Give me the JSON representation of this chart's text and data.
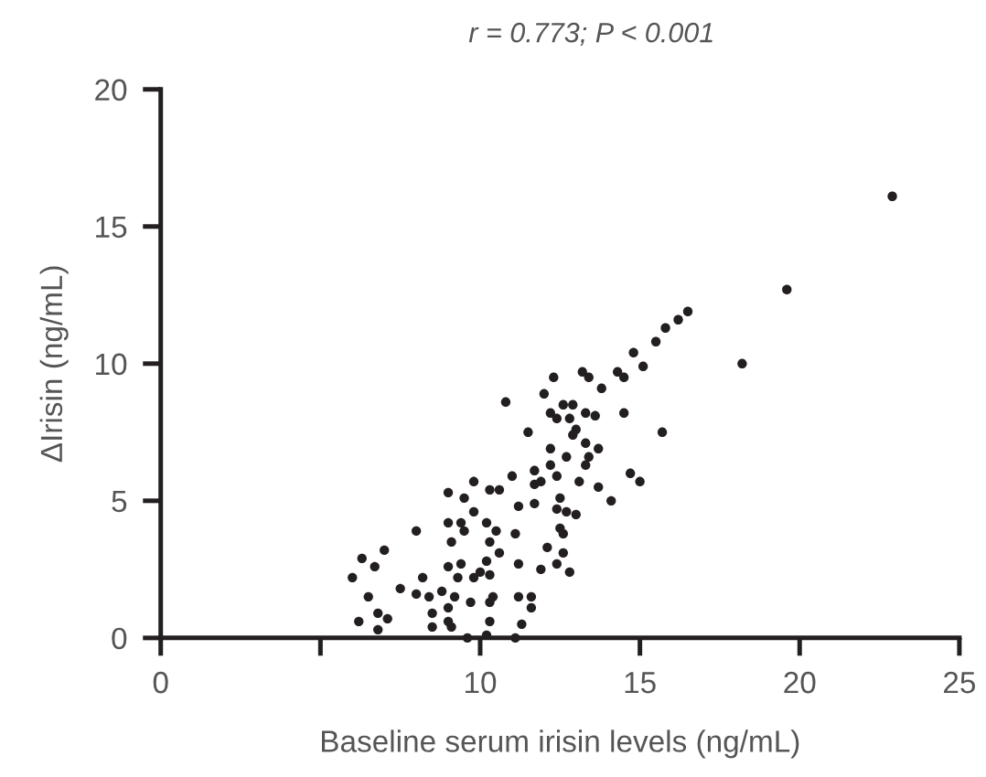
{
  "chart_data": {
    "type": "scatter",
    "xlabel": "Baseline serum irisin levels (ng/mL)",
    "ylabel": "ΔIrisin (ng/mL)",
    "annotations": [
      "r = 0.773; P < 0.001"
    ],
    "xlim": [
      0,
      25
    ],
    "ylim": [
      0,
      20
    ],
    "xticks": [
      0,
      {
        "value": 5,
        "label": null
      },
      10,
      15,
      20,
      25
    ],
    "yticks": [
      0,
      5,
      10,
      15,
      20
    ],
    "grid": false,
    "marker": "circle",
    "series": [
      {
        "color": "#231f20",
        "x": [
          14.8,
          15.1,
          14.3,
          14.5,
          13.2,
          13.4,
          13.8,
          12.3,
          12.0,
          10.8,
          12.6,
          12.9,
          12.2,
          12.4,
          12.8,
          13.3,
          13.6,
          14.5,
          13.0,
          12.9,
          11.5,
          13.3,
          13.7,
          12.2,
          12.7,
          13.4,
          13.3,
          12.2,
          11.7,
          12.4,
          11.9,
          11.7,
          13.1,
          14.7,
          15.0,
          13.7,
          11.0,
          9.8,
          10.3,
          10.6,
          9.0,
          9.5,
          12.5,
          14.1,
          11.2,
          11.7,
          12.4,
          9.8,
          12.7,
          13.0,
          9.0,
          9.4,
          9.5,
          10.2,
          10.5,
          8.0,
          11.1,
          9.1,
          10.3,
          12.5,
          12.6,
          12.1,
          10.6,
          10.2,
          12.6,
          7.0,
          6.3,
          6.7,
          6.0,
          9.4,
          9.0,
          11.2,
          11.9,
          12.4,
          12.8,
          10.0,
          10.3,
          9.3,
          9.8,
          8.2,
          7.5,
          8.0,
          8.4,
          8.8,
          6.5,
          9.2,
          9.7,
          10.3,
          10.4,
          11.2,
          11.6,
          11.6,
          9.0,
          8.5,
          6.8,
          7.1,
          6.2,
          6.8,
          9.0,
          9.1,
          8.5,
          10.3,
          11.3,
          9.6,
          10.2,
          11.1,
          22.9,
          19.6,
          18.2,
          16.5,
          16.2,
          15.8,
          15.5,
          15.7
        ],
        "values": [
          10.4,
          9.9,
          9.7,
          9.5,
          9.7,
          9.5,
          9.1,
          9.5,
          8.9,
          8.6,
          8.5,
          8.5,
          8.2,
          8.0,
          8.0,
          8.2,
          8.1,
          8.2,
          7.6,
          7.4,
          7.5,
          7.1,
          6.9,
          6.9,
          6.6,
          6.6,
          6.3,
          6.3,
          6.1,
          5.9,
          5.7,
          5.6,
          5.7,
          6.0,
          5.7,
          5.5,
          5.9,
          5.7,
          5.4,
          5.4,
          5.3,
          5.1,
          5.1,
          5.0,
          4.8,
          4.9,
          4.7,
          4.6,
          4.6,
          4.5,
          4.2,
          4.2,
          3.9,
          4.2,
          3.9,
          3.9,
          3.8,
          3.5,
          3.5,
          4.0,
          3.8,
          3.3,
          3.1,
          2.8,
          3.1,
          3.2,
          2.9,
          2.6,
          2.2,
          2.7,
          2.6,
          2.7,
          2.5,
          2.7,
          2.4,
          2.4,
          2.3,
          2.2,
          2.2,
          2.2,
          1.8,
          1.6,
          1.5,
          1.7,
          1.5,
          1.5,
          1.3,
          1.3,
          1.5,
          1.5,
          1.5,
          1.1,
          1.1,
          0.9,
          0.9,
          0.7,
          0.6,
          0.3,
          0.6,
          0.4,
          0.4,
          0.6,
          0.5,
          0.0,
          0.1,
          0.0,
          16.1,
          12.7,
          10.0,
          11.9,
          11.6,
          11.3,
          10.8,
          7.5
        ]
      }
    ]
  }
}
